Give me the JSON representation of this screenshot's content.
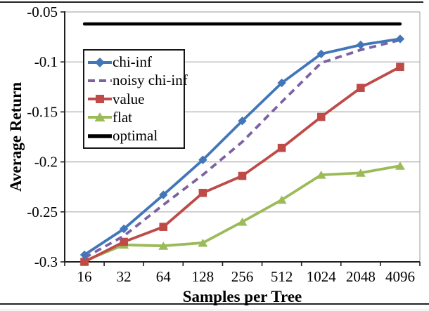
{
  "figure": {
    "y_axis_title": "Average Return",
    "x_axis_title": "Samples per Tree"
  },
  "chart_data": {
    "type": "line",
    "title": "",
    "xlabel": "Samples per Tree",
    "ylabel": "Average Return",
    "x_scale": "log2-categorical",
    "categories": [
      "16",
      "32",
      "64",
      "128",
      "256",
      "512",
      "1024",
      "2048",
      "4096"
    ],
    "ylim": [
      -0.3,
      -0.05
    ],
    "y_ticks": [
      -0.05,
      -0.1,
      -0.15,
      -0.2,
      -0.25,
      -0.3
    ],
    "y_tick_labels": [
      "-0.05",
      "-0.1",
      "-0.15",
      "-0.2",
      "-0.25",
      "-0.3"
    ],
    "grid": "horizontal",
    "legend_position": "upper-left-inside",
    "series": [
      {
        "name": "flat",
        "color": "#9bba58",
        "marker": "triangle",
        "line": "solid",
        "values": [
          -0.299,
          -0.283,
          -0.284,
          -0.281,
          -0.26,
          -0.238,
          -0.213,
          -0.211,
          -0.204
        ]
      },
      {
        "name": "value",
        "color": "#be4b48",
        "marker": "square",
        "line": "solid",
        "values": [
          -0.3,
          -0.28,
          -0.265,
          -0.231,
          -0.214,
          -0.186,
          -0.155,
          -0.126,
          -0.105
        ]
      },
      {
        "name": "noisy chi-inf",
        "color": "#7d62a2",
        "marker": "none",
        "line": "dashed",
        "values": [
          -0.296,
          -0.274,
          -0.243,
          -0.213,
          -0.18,
          -0.14,
          -0.101,
          -0.088,
          -0.078
        ]
      },
      {
        "name": "chi-inf",
        "color": "#4276b9",
        "marker": "diamond",
        "line": "solid",
        "values": [
          -0.293,
          -0.267,
          -0.233,
          -0.198,
          -0.159,
          -0.121,
          -0.092,
          -0.083,
          -0.077
        ]
      },
      {
        "name": "optimal",
        "color": "#000000",
        "marker": "none",
        "line": "thick",
        "values": [
          -0.062,
          -0.062,
          -0.062,
          -0.062,
          -0.062,
          -0.062,
          -0.062,
          -0.062,
          -0.062
        ]
      }
    ],
    "legend_order": [
      "chi-inf",
      "noisy chi-inf",
      "value",
      "flat",
      "optimal"
    ]
  },
  "style_colors": {
    "gridline": "#adadad",
    "axis": "#1f1f1f",
    "text": "#000000",
    "frame": "#222222"
  }
}
